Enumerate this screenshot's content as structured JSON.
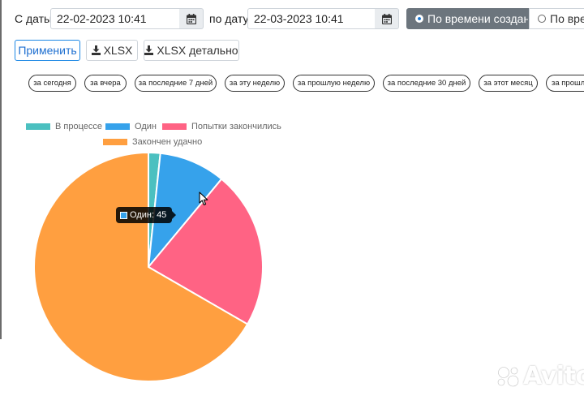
{
  "filters": {
    "from_label": "С даты:",
    "from_value": "22-02-2023 10:41",
    "to_label": "по дату:",
    "to_value": "22-03-2023 10:41",
    "mode_active": "По времени создания",
    "mode_inactive": "По времен"
  },
  "buttons": {
    "apply": "Применить",
    "xlsx": "XLSX",
    "xlsx_detailed": "XLSX детально"
  },
  "quick_ranges": [
    "за сегодня",
    "за вчера",
    "за последние 7 дней",
    "за эту неделю",
    "за прошлую неделю",
    "за последние 30 дней",
    "за этот месяц",
    "за прошл"
  ],
  "tooltip": {
    "text": "Один: 45"
  },
  "watermark": {
    "text": "Avito"
  },
  "icons": {
    "calendar": "calendar-icon",
    "download": "download-icon",
    "cursor": "mouse-cursor-icon"
  },
  "chart_data": {
    "type": "pie",
    "legend_placement": "top",
    "series": [
      {
        "name": "В процессе",
        "value": 8,
        "color": "#4bc0c0"
      },
      {
        "name": "Один",
        "value": 45,
        "color": "#36a2eb"
      },
      {
        "name": "Попытки закончились",
        "value": 107,
        "color": "#ff6384"
      },
      {
        "name": "Закончен удачно",
        "value": 320,
        "color": "#ff9f40"
      }
    ]
  }
}
